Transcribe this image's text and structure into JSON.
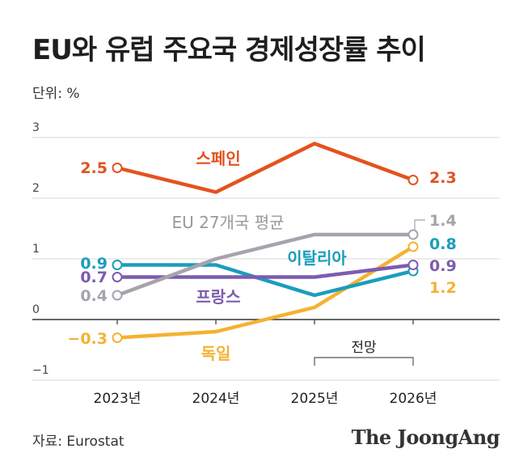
{
  "header": {
    "title": "EU와 유럽 주요국 경제성장률 추이",
    "unit": "단위: %"
  },
  "footer": {
    "source": "자료: Eurostat",
    "brand": "The JoongAng"
  },
  "chart_data": {
    "type": "line",
    "title": "EU와 유럽 주요국 경제성장률 추이",
    "ylabel": "",
    "xlabel": "",
    "ylim": [
      -1,
      3
    ],
    "yticks": [
      "3",
      "2",
      "1",
      "0",
      "−1"
    ],
    "x": [
      "2023년",
      "2024년",
      "2025년",
      "2026년"
    ],
    "forecast_label": "전망",
    "forecast_range": [
      "2025년",
      "2026년"
    ],
    "grid": true,
    "series": [
      {
        "name": "스페인",
        "color": "#e4521e",
        "values": [
          2.5,
          2.1,
          2.9,
          2.3
        ],
        "start_label": "2.5",
        "end_label": "2.3"
      },
      {
        "name": "EU 27개국 평균",
        "color": "#a6a3ac",
        "values": [
          0.4,
          1.0,
          1.4,
          1.4
        ],
        "start_label": "0.4",
        "end_label": "1.4"
      },
      {
        "name": "이탈리아",
        "color": "#1a9dbd",
        "values": [
          0.9,
          0.9,
          0.4,
          0.8
        ],
        "start_label": "0.9",
        "end_label": "0.8"
      },
      {
        "name": "프랑스",
        "color": "#7c5cb0",
        "values": [
          0.7,
          0.7,
          0.7,
          0.9
        ],
        "start_label": "0.7",
        "end_label": "0.9"
      },
      {
        "name": "독일",
        "color": "#f4b232",
        "values": [
          -0.3,
          -0.2,
          0.2,
          1.2
        ],
        "start_label": "−0.3",
        "end_label": "1.2"
      }
    ]
  }
}
